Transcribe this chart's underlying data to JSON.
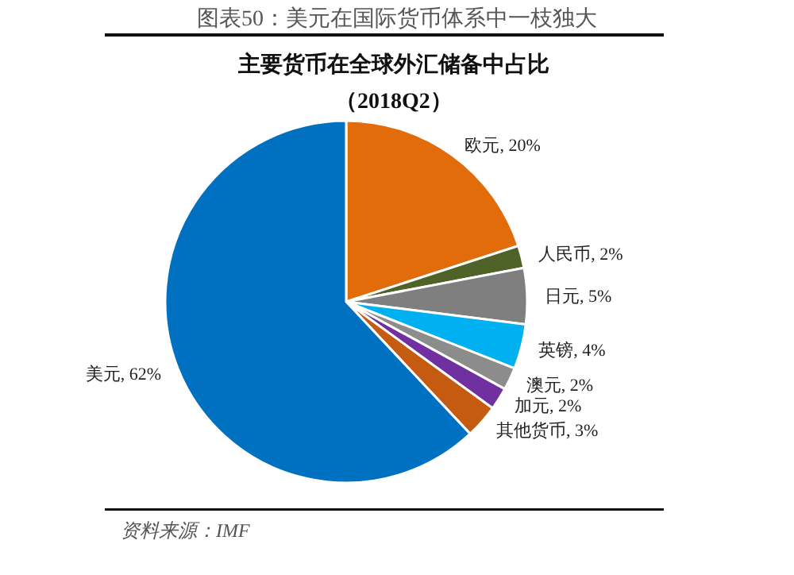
{
  "chart_data": {
    "type": "pie",
    "title": "主要货币在全球外汇储备中占比",
    "subtitle": "（2018Q2）",
    "annotations": [
      "图表50：美元在国际货币体系中一枝独大",
      "资料来源：IMF"
    ],
    "categories": [
      "欧元",
      "人民币",
      "日元",
      "英镑",
      "澳元",
      "加元",
      "其他货币",
      "美元"
    ],
    "values": [
      20,
      2,
      5,
      4,
      2,
      2,
      3,
      62
    ],
    "colors": [
      "#e36c0a",
      "#4f6228",
      "#7f7f7f",
      "#00b0f0",
      "#8c8c8c",
      "#7030a0",
      "#c55a11",
      "#0070c0"
    ],
    "value_labels": [
      ", 20%",
      ", 2%",
      ", 5%",
      ", 4%",
      ", 2%",
      ", 2%",
      ", 3%",
      ", 62%"
    ]
  }
}
